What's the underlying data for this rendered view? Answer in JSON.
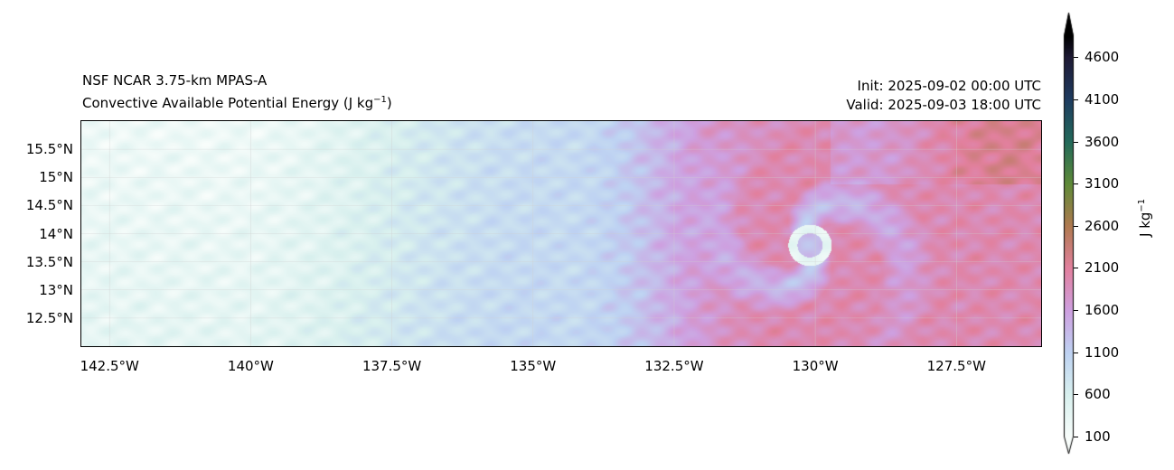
{
  "title": {
    "model": "NSF NCAR 3.75-km MPAS-A",
    "field": "Convective Available Potential Energy (J kg",
    "field_sup": "−1",
    "field_end": ")",
    "init": "Init: 2025-09-02 00:00 UTC",
    "valid": "Valid: 2025-09-03 18:00 UTC"
  },
  "colors": {
    "frame": "#000000",
    "grid": "#d0d0d0"
  },
  "chart_data": {
    "type": "heatmap",
    "title": "Convective Available Potential Energy",
    "x_ticks": [
      {
        "value": -142.5,
        "label": "142.5°W"
      },
      {
        "value": -140,
        "label": "140°W"
      },
      {
        "value": -137.5,
        "label": "137.5°W"
      },
      {
        "value": -135,
        "label": "135°W"
      },
      {
        "value": -132.5,
        "label": "132.5°W"
      },
      {
        "value": -130,
        "label": "130°W"
      },
      {
        "value": -127.5,
        "label": "127.5°W"
      }
    ],
    "y_ticks": [
      {
        "value": 15.5,
        "label": "15.5°N"
      },
      {
        "value": 15,
        "label": "15°N"
      },
      {
        "value": 14.5,
        "label": "14.5°N"
      },
      {
        "value": 14,
        "label": "14°N"
      },
      {
        "value": 13.5,
        "label": "13.5°N"
      },
      {
        "value": 13,
        "label": "13°N"
      },
      {
        "value": 12.5,
        "label": "12.5°N"
      }
    ],
    "xlim": [
      -143.0,
      -126.0
    ],
    "ylim": [
      12.0,
      16.0
    ],
    "grid": true,
    "colorbar": {
      "label": "J kg",
      "label_sup": "−1",
      "ticks": [
        100,
        600,
        1100,
        1600,
        2100,
        2600,
        3100,
        3600,
        4100,
        4600
      ],
      "range": [
        100,
        4850
      ],
      "extend": "both"
    },
    "features": {
      "cyclone_center_lon": -130.1,
      "cyclone_center_lat": 13.8
    }
  }
}
